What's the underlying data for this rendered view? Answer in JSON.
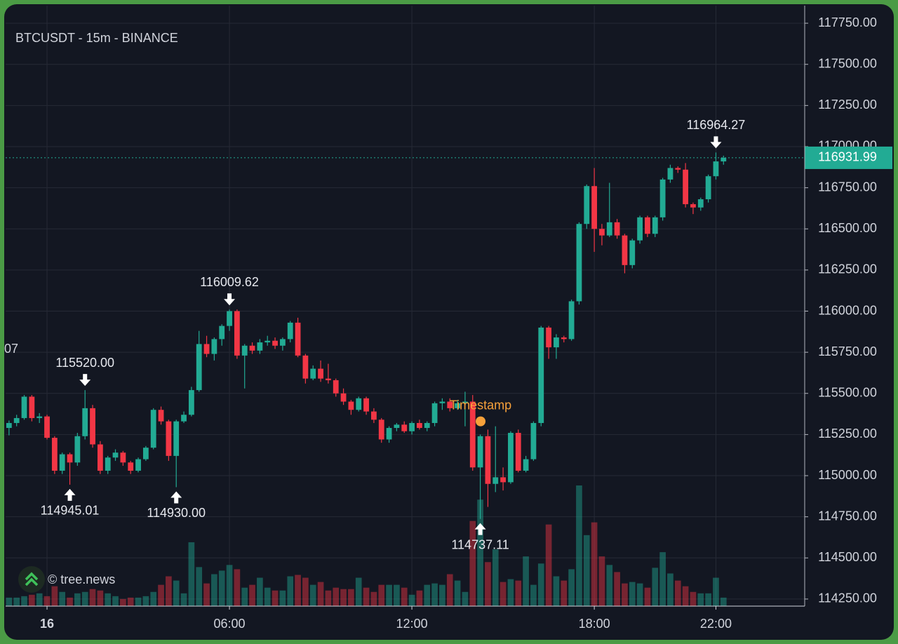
{
  "chart_data": {
    "type": "candlestick",
    "title": "BTCUSDT - 15m - BINANCE",
    "watermark": "© tree.news",
    "clipped_label": "07",
    "up_color": "#22ab94",
    "down_color": "#f23645",
    "volume_opacity": 0.45,
    "grid": true,
    "xlim": [
      -1.362,
      24.92
    ],
    "xticks": [
      {
        "value": 0,
        "label": "16"
      },
      {
        "value": 6,
        "label": "06:00"
      },
      {
        "value": 12,
        "label": "12:00"
      },
      {
        "value": 18,
        "label": "18:00"
      },
      {
        "value": 22,
        "label": "22:00"
      }
    ],
    "ylim": [
      114207,
      117857
    ],
    "yticks": [
      {
        "value": 114250,
        "label": "114250.00"
      },
      {
        "value": 114500,
        "label": "114500.00"
      },
      {
        "value": 114750,
        "label": "114750.00"
      },
      {
        "value": 115000,
        "label": "115000.00"
      },
      {
        "value": 115250,
        "label": "115250.00"
      },
      {
        "value": 115500,
        "label": "115500.00"
      },
      {
        "value": 115750,
        "label": "115750.00"
      },
      {
        "value": 116000,
        "label": "116000.00"
      },
      {
        "value": 116250,
        "label": "116250.00"
      },
      {
        "value": 116500,
        "label": "116500.00"
      },
      {
        "value": 116750,
        "label": "116750.00"
      },
      {
        "value": 117000,
        "label": "117000.00"
      },
      {
        "value": 117250,
        "label": "117250.00"
      },
      {
        "value": 117500,
        "label": "117500.00"
      },
      {
        "value": 117750,
        "label": "117750.00"
      }
    ],
    "last_price": {
      "value": 116931.99,
      "label": "116931.99",
      "color": "#22ab94"
    },
    "marker": {
      "label": "Timestamp",
      "x": 14.26,
      "y": 115330,
      "color": "#f7a13a"
    },
    "annotations": [
      {
        "label": "116009.62",
        "value": 116009.62,
        "x": 6.0,
        "direction": "down"
      },
      {
        "label": "115520.00",
        "value": 115520,
        "x": 1.25,
        "direction": "down"
      },
      {
        "label": "114945.01",
        "value": 114945.01,
        "x": 0.75,
        "direction": "up"
      },
      {
        "label": "114930.00",
        "value": 114930,
        "x": 4.25,
        "direction": "up"
      },
      {
        "label": "114737.11",
        "value": 114737.11,
        "x": 14.25,
        "direction": "up"
      },
      {
        "label": "116964.27",
        "value": 116964.27,
        "x": 22.0,
        "direction": "down"
      }
    ],
    "x": [
      -1.25,
      -1,
      -0.75,
      -0.5,
      -0.25,
      0,
      0.25,
      0.5,
      0.75,
      1,
      1.25,
      1.5,
      1.75,
      2,
      2.25,
      2.5,
      2.75,
      3,
      3.25,
      3.5,
      3.75,
      4,
      4.25,
      4.5,
      4.75,
      5,
      5.25,
      5.5,
      5.75,
      6,
      6.25,
      6.5,
      6.75,
      7,
      7.25,
      7.5,
      7.75,
      8,
      8.25,
      8.5,
      8.75,
      9,
      9.25,
      9.5,
      9.75,
      10,
      10.25,
      10.5,
      10.75,
      11,
      11.25,
      11.5,
      11.75,
      12,
      12.25,
      12.5,
      12.75,
      13,
      13.25,
      13.5,
      13.75,
      14,
      14.25,
      14.5,
      14.75,
      15,
      15.25,
      15.5,
      15.75,
      16,
      16.25,
      16.5,
      16.75,
      17,
      17.25,
      17.5,
      17.75,
      18,
      18.25,
      18.5,
      18.75,
      19,
      19.25,
      19.5,
      19.75,
      20,
      20.25,
      20.5,
      20.75,
      21,
      21.25,
      21.5,
      21.75,
      22,
      22.25
    ],
    "open": [
      115290,
      115320,
      115350,
      115480,
      115350,
      115360,
      115230,
      115030,
      115130,
      115080,
      115240,
      115410,
      115190,
      115030,
      115110,
      115140,
      115080,
      115030,
      115100,
      115170,
      115400,
      115330,
      115120,
      115330,
      115370,
      115520,
      115800,
      115740,
      115830,
      115910,
      116000,
      115730,
      115790,
      115760,
      115810,
      115820,
      115790,
      115830,
      115930,
      115730,
      115590,
      115650,
      115590,
      115580,
      115500,
      115450,
      115400,
      115470,
      115390,
      115340,
      115220,
      115290,
      115310,
      115270,
      115320,
      115290,
      115320,
      115440,
      115450,
      115410,
      115440,
      115450,
      115050,
      115240,
      114950,
      114990,
      114960,
      115260,
      115030,
      115100,
      115320,
      115900,
      115780,
      115840,
      115830,
      116060,
      116530,
      116760,
      116500,
      116460,
      116540,
      116460,
      116280,
      116430,
      116570,
      116470,
      116570,
      116800,
      116870,
      116860,
      116650,
      116630,
      116680,
      116820,
      116910
    ],
    "high": [
      115335,
      115370,
      115490,
      115490,
      115380,
      115370,
      115240,
      115140,
      115140,
      115260,
      115520,
      115430,
      115210,
      115120,
      115160,
      115150,
      115090,
      115110,
      115180,
      115410,
      115420,
      115340,
      115340,
      115390,
      115540,
      115880,
      115850,
      115840,
      115920,
      116009.62,
      116010,
      115800,
      115810,
      115830,
      115850,
      115840,
      115840,
      115940,
      115960,
      115740,
      115670,
      115700,
      115680,
      115590,
      115530,
      115460,
      115480,
      115480,
      115410,
      115350,
      115300,
      115320,
      115330,
      115330,
      115340,
      115330,
      115450,
      115470,
      115470,
      115460,
      115510,
      115490,
      115250,
      115280,
      115300,
      115050,
      115270,
      115280,
      115120,
      115330,
      115910,
      115910,
      115860,
      115850,
      116070,
      116540,
      116770,
      116870,
      116530,
      116780,
      116560,
      116470,
      116440,
      116580,
      116580,
      116580,
      116810,
      116890,
      116880,
      116900,
      116660,
      116690,
      116830,
      116964.27,
      116945
    ],
    "low": [
      115245,
      115300,
      115340,
      115330,
      115320,
      115220,
      115010,
      115010,
      114945.01,
      115060,
      115220,
      115170,
      115010,
      115010,
      115090,
      115060,
      115010,
      115020,
      115090,
      115160,
      115310,
      115090,
      114930,
      115320,
      115360,
      115510,
      115720,
      115700,
      115790,
      115880,
      115710,
      115530,
      115740,
      115740,
      115790,
      115770,
      115760,
      115810,
      115720,
      115560,
      115580,
      115570,
      115560,
      115480,
      115430,
      115370,
      115390,
      115370,
      115320,
      115200,
      115200,
      115270,
      115260,
      115250,
      115280,
      115270,
      115300,
      115400,
      115390,
      115400,
      115300,
      115030,
      114737.11,
      114810,
      114900,
      114910,
      114950,
      115020,
      115020,
      115090,
      115300,
      115710,
      115710,
      115810,
      115820,
      116040,
      116500,
      116360,
      116400,
      116450,
      116440,
      116230,
      116260,
      116410,
      116450,
      116450,
      116550,
      116780,
      116840,
      116630,
      116590,
      116610,
      116660,
      116800,
      116890
    ],
    "close": [
      115320,
      115350,
      115480,
      115350,
      115360,
      115230,
      115030,
      115130,
      115080,
      115240,
      115410,
      115190,
      115030,
      115110,
      115140,
      115080,
      115030,
      115100,
      115170,
      115400,
      115330,
      115120,
      115330,
      115370,
      115520,
      115800,
      115740,
      115830,
      115910,
      116000,
      115730,
      115790,
      115760,
      115810,
      115820,
      115790,
      115830,
      115930,
      115730,
      115590,
      115650,
      115590,
      115580,
      115500,
      115450,
      115400,
      115470,
      115390,
      115340,
      115220,
      115290,
      115310,
      115270,
      115320,
      115290,
      115320,
      115440,
      115450,
      115410,
      115440,
      115450,
      115050,
      115240,
      114950,
      114990,
      114960,
      115260,
      115030,
      115100,
      115320,
      115900,
      115780,
      115840,
      115830,
      116060,
      116530,
      116760,
      116500,
      116460,
      116540,
      116460,
      116280,
      116430,
      116570,
      116470,
      116570,
      116800,
      116870,
      116860,
      116650,
      116630,
      116680,
      116820,
      116910,
      116931.99
    ],
    "volume": [
      12,
      12,
      14,
      16,
      18,
      14,
      28,
      20,
      12,
      18,
      20,
      24,
      22,
      18,
      14,
      10,
      12,
      12,
      14,
      20,
      30,
      42,
      36,
      18,
      90,
      55,
      32,
      45,
      50,
      58,
      52,
      26,
      30,
      40,
      26,
      22,
      22,
      42,
      44,
      40,
      30,
      34,
      22,
      26,
      24,
      24,
      40,
      26,
      20,
      30,
      30,
      30,
      26,
      16,
      22,
      30,
      32,
      30,
      45,
      36,
      20,
      120,
      150,
      62,
      80,
      34,
      38,
      36,
      70,
      30,
      60,
      115,
      42,
      36,
      52,
      170,
      100,
      118,
      70,
      58,
      48,
      32,
      34,
      32,
      26,
      54,
      76,
      46,
      36,
      28,
      20,
      18,
      18,
      40,
      12
    ]
  }
}
